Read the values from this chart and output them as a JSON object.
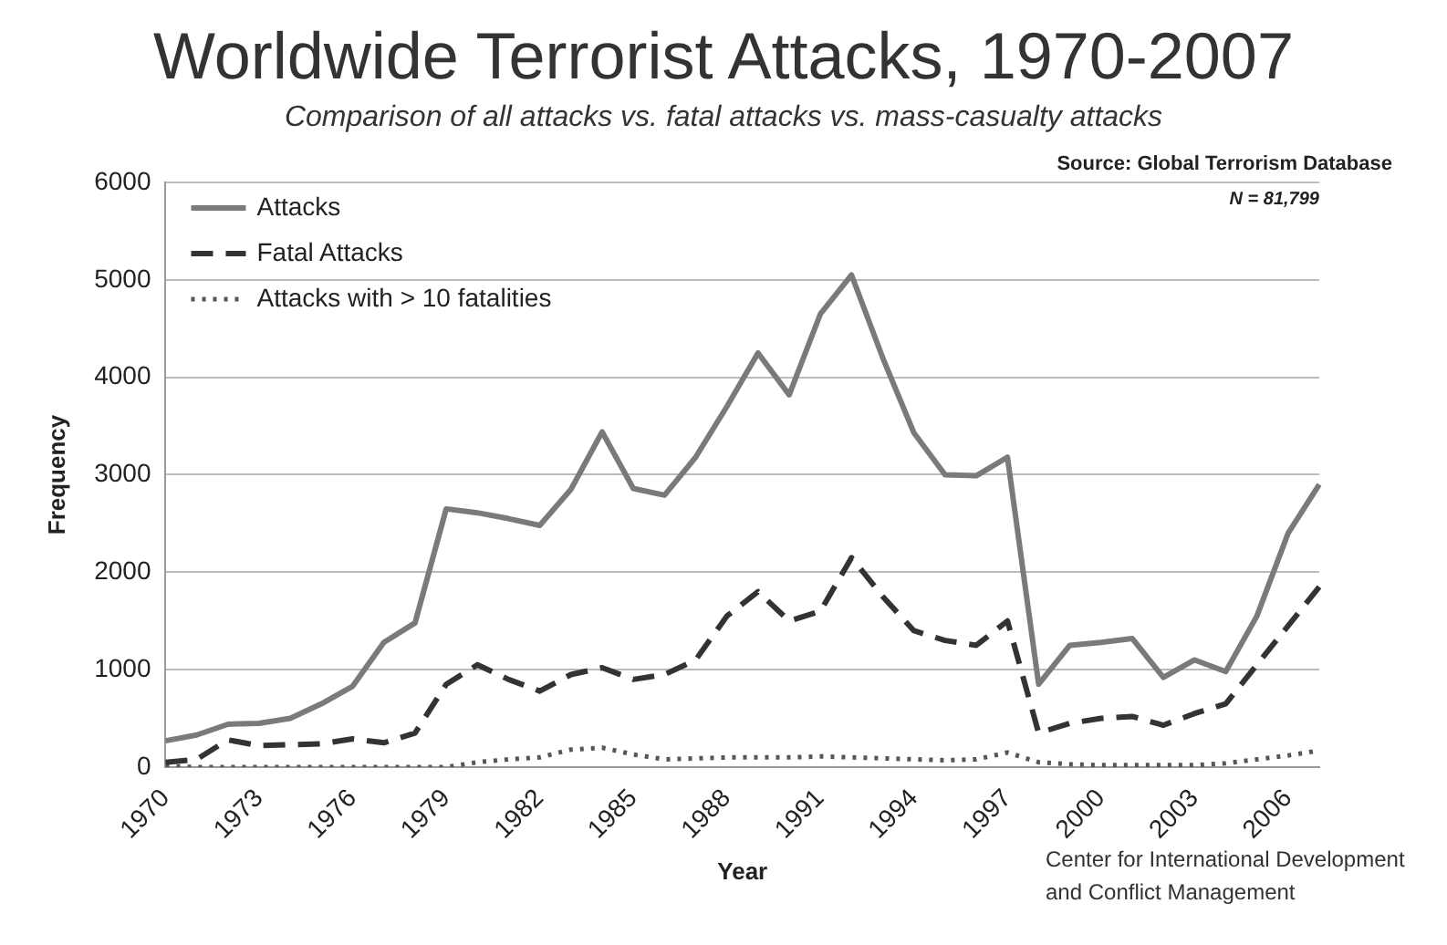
{
  "chart_data": {
    "type": "line",
    "title": "Worldwide Terrorist Attacks, 1970-2007",
    "subtitle": "Comparison of all attacks vs. fatal attacks vs. mass-casualty attacks",
    "xlabel": "Year",
    "ylabel": "Frequency",
    "categories": [
      "1970",
      null,
      null,
      "1973",
      null,
      null,
      "1976",
      null,
      null,
      "1979",
      null,
      null,
      "1982",
      null,
      null,
      "1985",
      null,
      null,
      "1988",
      null,
      null,
      "1991",
      null,
      null,
      "1994",
      null,
      null,
      "1997",
      null,
      null,
      "2000",
      null,
      null,
      "2003",
      null,
      null,
      "2006",
      null
    ],
    "series": [
      {
        "name": "Attacks",
        "color": "#7a7a7a",
        "line_style": "solid",
        "values": [
          270,
          330,
          440,
          450,
          500,
          650,
          830,
          1280,
          1480,
          2650,
          2610,
          2550,
          2480,
          2850,
          3440,
          2860,
          2790,
          3180,
          3700,
          4250,
          3820,
          4650,
          5050,
          4200,
          3430,
          3000,
          2990,
          3180,
          850,
          1250,
          1280,
          1320,
          920,
          1100,
          980,
          1550,
          2400,
          2900
        ]
      },
      {
        "name": "Fatal Attacks",
        "color": "#333333",
        "line_style": "dashed",
        "values": [
          50,
          80,
          280,
          220,
          230,
          240,
          290,
          250,
          350,
          850,
          1050,
          900,
          780,
          950,
          1020,
          900,
          950,
          1100,
          1550,
          1800,
          1500,
          1600,
          2150,
          1750,
          1400,
          1300,
          1250,
          1500,
          350,
          450,
          500,
          520,
          430,
          550,
          650,
          1050,
          1450,
          1850
        ]
      },
      {
        "name": "Attacks with > 10 fatalities",
        "color": "#555555",
        "line_style": "dotted",
        "values": [
          10,
          0,
          0,
          0,
          0,
          0,
          0,
          0,
          0,
          0,
          50,
          80,
          100,
          180,
          200,
          130,
          80,
          90,
          100,
          100,
          100,
          110,
          100,
          90,
          80,
          70,
          80,
          150,
          50,
          30,
          20,
          20,
          20,
          20,
          40,
          80,
          120,
          170
        ]
      }
    ],
    "ylim": [
      0,
      6000
    ],
    "yticks": [
      0,
      1000,
      2000,
      3000,
      4000,
      5000,
      6000
    ],
    "grid": "y",
    "legend": "top left",
    "marker": "none",
    "annotations": [
      "Source: Global Terrorism Database",
      "N = 81,799",
      "Center for International Development and Conflict Management"
    ]
  }
}
